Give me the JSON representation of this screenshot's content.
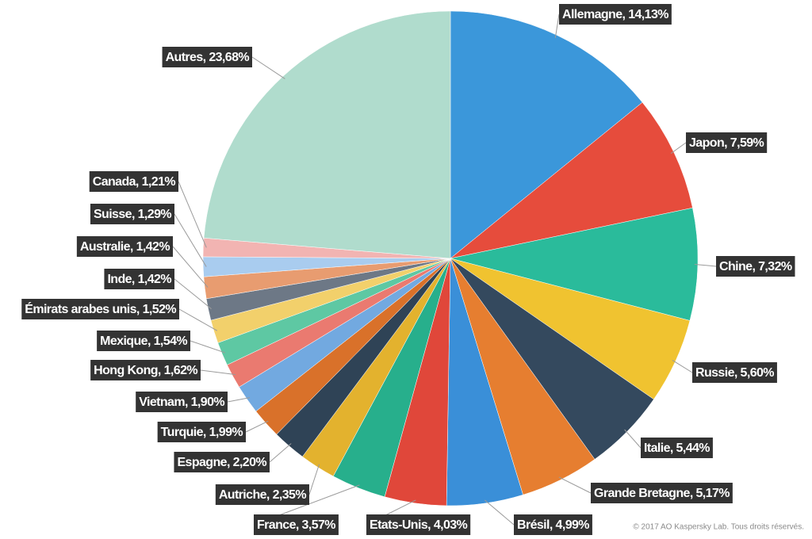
{
  "chart_data": {
    "type": "pie",
    "values": [
      14.13,
      7.59,
      7.32,
      5.6,
      5.44,
      5.17,
      4.99,
      4.03,
      3.57,
      2.35,
      2.2,
      1.99,
      1.9,
      1.62,
      1.54,
      1.52,
      1.42,
      1.42,
      1.29,
      1.21,
      23.68
    ],
    "value_labels": [
      "Allemagne, 14,13%",
      "Japon, 7,59%",
      "Chine, 7,32%",
      "Russie, 5,60%",
      "Italie, 5,44%",
      "Grande Bretagne, 5,17%",
      "Brésil, 4,99%",
      "Etats-Unis, 4,03%",
      "France, 3,57%",
      "Autriche, 2,35%",
      "Espagne, 2,20%",
      "Turquie, 1,99%",
      "Vietnam, 1,90%",
      "Hong Kong, 1,62%",
      "Mexique, 1,54%",
      "Émirats arabes unis, 1,52%",
      "Inde, 1,42%",
      "Australie, 1,42%",
      "Suisse, 1,29%",
      "Canada, 1,21%",
      "Autres, 23,68%"
    ],
    "colors": [
      "#3b97da",
      "#e64c3c",
      "#2abb9b",
      "#f0c330",
      "#34495e",
      "#e67e30",
      "#3a8fd8",
      "#e0473a",
      "#27af8c",
      "#e3b22e",
      "#2f4356",
      "#d9712a",
      "#72a9e0",
      "#ea7a70",
      "#5ec8a3",
      "#f2d06b",
      "#6d7886",
      "#e89c70",
      "#a9ccef",
      "#f2b4b2",
      "#b0dccd"
    ],
    "source": "© 2017 AO Kaspersky Lab. Tous droits réservés."
  }
}
